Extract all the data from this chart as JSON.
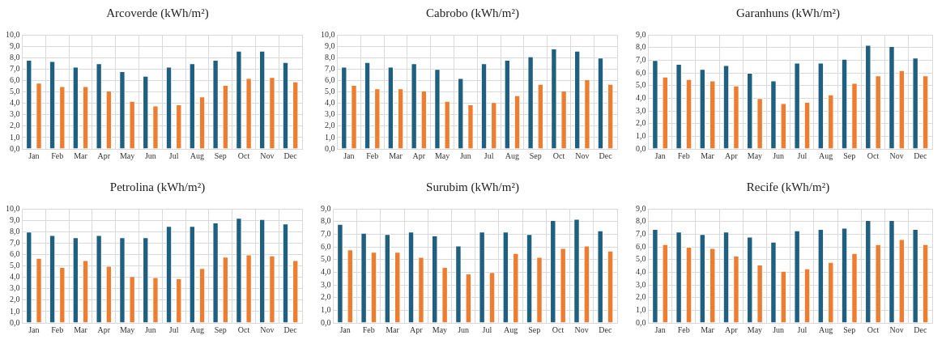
{
  "chart_data": [
    {
      "type": "bar",
      "title": "Arcoverde (kWh/m²)",
      "categories": [
        "Jan",
        "Feb",
        "Mar",
        "Apr",
        "May",
        "Jun",
        "Jul",
        "Aug",
        "Sep",
        "Oct",
        "Nov",
        "Dec"
      ],
      "series": [
        {
          "color": "#1f5f80",
          "values": [
            7.8,
            7.7,
            7.2,
            7.5,
            6.8,
            6.4,
            7.2,
            7.5,
            7.8,
            8.6,
            8.6,
            7.6
          ]
        },
        {
          "color": "#ed7d31",
          "values": [
            5.8,
            5.5,
            5.5,
            5.1,
            4.2,
            3.8,
            3.9,
            4.6,
            5.6,
            6.2,
            6.3,
            5.9
          ]
        }
      ],
      "ylim": [
        0,
        10
      ],
      "yticks": [
        {
          "value": 0,
          "label": "0,0"
        },
        {
          "value": 1,
          "label": "1,0"
        },
        {
          "value": 2,
          "label": "2,0"
        },
        {
          "value": 3,
          "label": "3,0"
        },
        {
          "value": 4,
          "label": "4,0"
        },
        {
          "value": 5,
          "label": "5,0"
        },
        {
          "value": 6,
          "label": "6,0"
        },
        {
          "value": 7,
          "label": "7,0"
        },
        {
          "value": 8,
          "label": "8,0"
        },
        {
          "value": 9,
          "label": "9,0"
        },
        {
          "value": 10,
          "label": "10,0"
        }
      ],
      "grid": true
    },
    {
      "type": "bar",
      "title": "Cabrobo (kWh/m²)",
      "categories": [
        "Jan",
        "Feb",
        "Mar",
        "Apr",
        "May",
        "Jun",
        "Jul",
        "Aug",
        "Sep",
        "Oct",
        "Nov",
        "Dec"
      ],
      "series": [
        {
          "color": "#1f5f80",
          "values": [
            7.2,
            7.6,
            7.2,
            7.5,
            7.0,
            6.2,
            7.5,
            7.8,
            8.1,
            8.8,
            8.6,
            8.0
          ]
        },
        {
          "color": "#ed7d31",
          "values": [
            5.6,
            5.3,
            5.3,
            5.1,
            4.2,
            3.9,
            4.1,
            4.7,
            5.7,
            5.1,
            6.1,
            5.7
          ]
        }
      ],
      "ylim": [
        0,
        10
      ],
      "yticks": [
        {
          "value": 0,
          "label": "0,0"
        },
        {
          "value": 1,
          "label": "1,0"
        },
        {
          "value": 2,
          "label": "2,0"
        },
        {
          "value": 3,
          "label": "3,0"
        },
        {
          "value": 4,
          "label": "4,0"
        },
        {
          "value": 5,
          "label": "5,0"
        },
        {
          "value": 6,
          "label": "6,0"
        },
        {
          "value": 7,
          "label": "7,0"
        },
        {
          "value": 8,
          "label": "8,0"
        },
        {
          "value": 9,
          "label": "9,0"
        },
        {
          "value": 10,
          "label": "10,0"
        }
      ],
      "grid": true
    },
    {
      "type": "bar",
      "title": "Garanhuns (kWh/m²)",
      "categories": [
        "Jan",
        "Feb",
        "Mar",
        "Apr",
        "May",
        "Jun",
        "Jul",
        "Aug",
        "Sep",
        "Oct",
        "Nov",
        "Dec"
      ],
      "series": [
        {
          "color": "#1f5f80",
          "values": [
            7.0,
            6.7,
            6.3,
            6.6,
            6.0,
            5.4,
            6.8,
            6.8,
            7.1,
            8.2,
            8.1,
            7.2
          ]
        },
        {
          "color": "#ed7d31",
          "values": [
            5.7,
            5.5,
            5.4,
            5.0,
            4.0,
            3.6,
            3.7,
            4.3,
            5.2,
            5.8,
            6.2,
            5.8
          ]
        }
      ],
      "ylim": [
        0,
        9
      ],
      "yticks": [
        {
          "value": 0,
          "label": "0,0"
        },
        {
          "value": 1,
          "label": "1,0"
        },
        {
          "value": 2,
          "label": "2,0"
        },
        {
          "value": 3,
          "label": "3,0"
        },
        {
          "value": 4,
          "label": "4,0"
        },
        {
          "value": 5,
          "label": "5,0"
        },
        {
          "value": 6,
          "label": "6,0"
        },
        {
          "value": 7,
          "label": "7,0"
        },
        {
          "value": 8,
          "label": "8,0"
        },
        {
          "value": 9,
          "label": "9,0"
        }
      ],
      "grid": true
    },
    {
      "type": "bar",
      "title": "Petrolina (kWh/m²)",
      "categories": [
        "Jan",
        "Feb",
        "Mar",
        "Apr",
        "May",
        "Jun",
        "Jul",
        "Aug",
        "Sep",
        "Oct",
        "Nov",
        "Dec"
      ],
      "series": [
        {
          "color": "#1f5f80",
          "values": [
            8.0,
            7.7,
            7.5,
            7.7,
            7.5,
            7.5,
            8.5,
            8.5,
            8.8,
            9.2,
            9.1,
            8.7
          ]
        },
        {
          "color": "#ed7d31",
          "values": [
            5.7,
            4.9,
            5.5,
            5.0,
            4.1,
            4.0,
            3.9,
            4.8,
            5.8,
            6.0,
            5.9,
            5.5
          ]
        }
      ],
      "ylim": [
        0,
        10
      ],
      "yticks": [
        {
          "value": 0,
          "label": "0,0"
        },
        {
          "value": 1,
          "label": "1,0"
        },
        {
          "value": 2,
          "label": "2,0"
        },
        {
          "value": 3,
          "label": "3,0"
        },
        {
          "value": 4,
          "label": "4,0"
        },
        {
          "value": 5,
          "label": "5,0"
        },
        {
          "value": 6,
          "label": "6,0"
        },
        {
          "value": 7,
          "label": "7,0"
        },
        {
          "value": 8,
          "label": "8,0"
        },
        {
          "value": 9,
          "label": "9,0"
        },
        {
          "value": 10,
          "label": "10,0"
        }
      ],
      "grid": true
    },
    {
      "type": "bar",
      "title": "Surubim (kWh/m²)",
      "categories": [
        "Jan",
        "Feb",
        "Mar",
        "Apr",
        "May",
        "Jun",
        "Jul",
        "Aug",
        "Sep",
        "Oct",
        "Nov",
        "Dec"
      ],
      "series": [
        {
          "color": "#1f5f80",
          "values": [
            7.8,
            7.1,
            7.0,
            7.2,
            6.9,
            6.1,
            7.2,
            7.2,
            7.0,
            8.1,
            8.2,
            7.3
          ]
        },
        {
          "color": "#ed7d31",
          "values": [
            5.8,
            5.6,
            5.6,
            5.2,
            4.4,
            3.9,
            4.0,
            5.5,
            5.2,
            5.9,
            6.1,
            5.7
          ]
        }
      ],
      "ylim": [
        0,
        9
      ],
      "yticks": [
        {
          "value": 0,
          "label": "0,0"
        },
        {
          "value": 1,
          "label": "1,0"
        },
        {
          "value": 2,
          "label": "2,0"
        },
        {
          "value": 3,
          "label": "3,0"
        },
        {
          "value": 4,
          "label": "4,0"
        },
        {
          "value": 5,
          "label": "5,0"
        },
        {
          "value": 6,
          "label": "6,0"
        },
        {
          "value": 7,
          "label": "7,0"
        },
        {
          "value": 8,
          "label": "8,0"
        },
        {
          "value": 9,
          "label": "9,0"
        }
      ],
      "grid": true
    },
    {
      "type": "bar",
      "title": "Recife (kWh/m²)",
      "categories": [
        "Jan",
        "Feb",
        "Mar",
        "Apr",
        "May",
        "Jun",
        "Jul",
        "Aug",
        "Sep",
        "Oct",
        "Nov",
        "Dec"
      ],
      "series": [
        {
          "color": "#1f5f80",
          "values": [
            7.4,
            7.2,
            7.0,
            7.2,
            6.8,
            6.4,
            7.3,
            7.4,
            7.5,
            8.1,
            8.1,
            7.4
          ]
        },
        {
          "color": "#ed7d31",
          "values": [
            6.2,
            6.0,
            5.9,
            5.3,
            4.6,
            4.1,
            4.3,
            4.8,
            5.5,
            6.2,
            6.6,
            6.2
          ]
        }
      ],
      "ylim": [
        0,
        9
      ],
      "yticks": [
        {
          "value": 0,
          "label": "0,0"
        },
        {
          "value": 1,
          "label": "1,0"
        },
        {
          "value": 2,
          "label": "2,0"
        },
        {
          "value": 3,
          "label": "3,0"
        },
        {
          "value": 4,
          "label": "4,0"
        },
        {
          "value": 5,
          "label": "5,0"
        },
        {
          "value": 6,
          "label": "6,0"
        },
        {
          "value": 7,
          "label": "7,0"
        },
        {
          "value": 8,
          "label": "8,0"
        },
        {
          "value": 9,
          "label": "9,0"
        }
      ],
      "grid": true
    }
  ]
}
